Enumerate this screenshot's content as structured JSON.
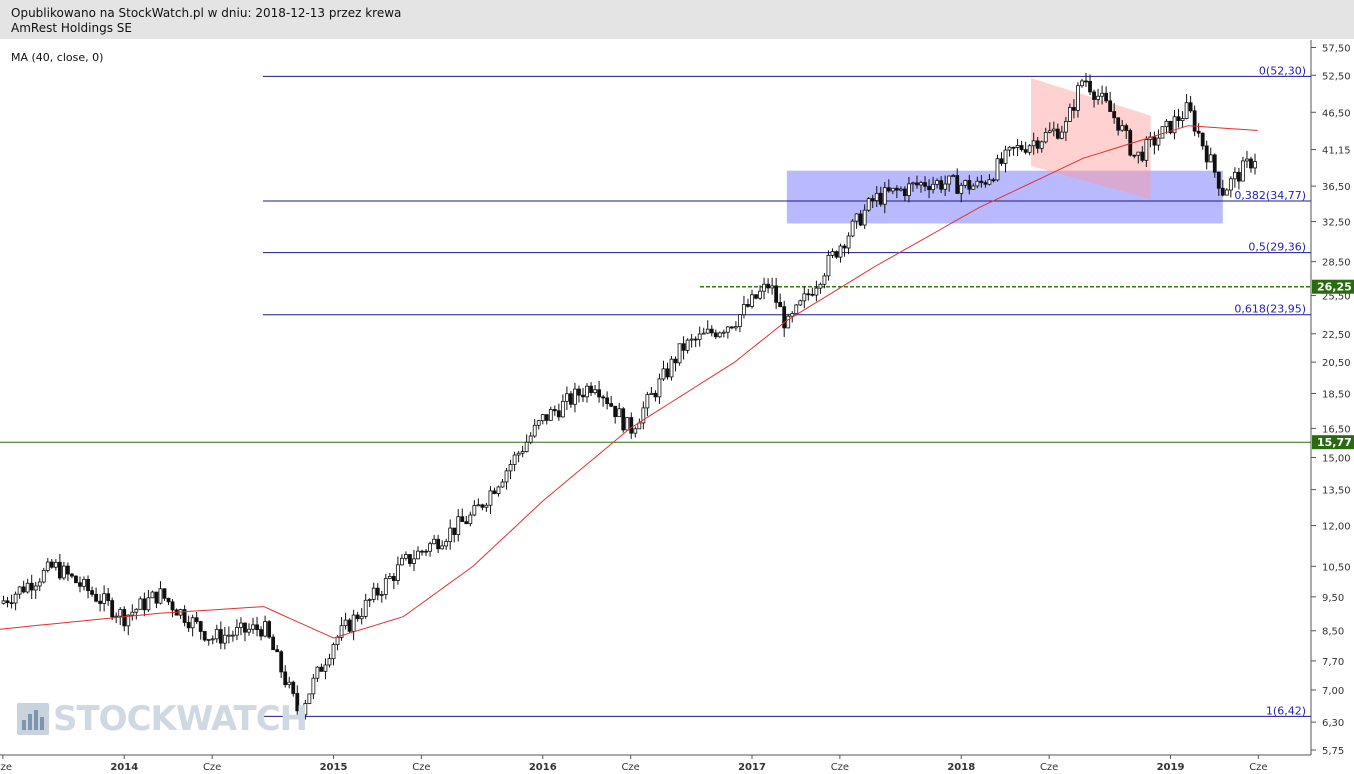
{
  "header": {
    "line1": "Opublikowano na StockWatch.pl w dniu: 2018-12-13 przez krewa",
    "line2": "AmRest Holdings SE"
  },
  "indicator_label": "MA (40, close, 0)",
  "watermark": "STOCKWATCH",
  "colors": {
    "candle": "#111111",
    "ma_line": "#e23030",
    "fib_lines": "#1a1a8c",
    "fib_labels": "#2222bb",
    "support_zone": "#8080ff",
    "channel": "#ff9a9a",
    "marker_green": "#2a6b12",
    "dashed_level": "#2e7d16"
  },
  "chart_data": {
    "type": "candlestick",
    "y_scale": "log",
    "ylim": [
      5.75,
      57.5
    ],
    "y_ticks": [
      "57,50",
      "52,50",
      "46,50",
      "41,15",
      "36,50",
      "32,50",
      "28,50",
      "25,50",
      "22,50",
      "20,50",
      "18,50",
      "16,50",
      "15,00",
      "13,50",
      "12,00",
      "10,50",
      "9,50",
      "8,50",
      "7,70",
      "7,00",
      "6,30",
      "5,75"
    ],
    "x_ticks": [
      "Cze",
      "2014",
      "Cze",
      "2015",
      "Cze",
      "2016",
      "Cze",
      "2017",
      "Cze",
      "2018",
      "Cze",
      "2019",
      "Cze"
    ],
    "xlim": [
      "2013-01",
      "2019-09"
    ],
    "fibonacci_levels": [
      {
        "label": "0(52,30)",
        "value": 52.3
      },
      {
        "label": "0,382(34,77)",
        "value": 34.77
      },
      {
        "label": "0,5(29,36)",
        "value": 29.36
      },
      {
        "label": "0,618(23,95)",
        "value": 23.95
      },
      {
        "label": "1(6,42)",
        "value": 6.42
      }
    ],
    "price_markers": [
      {
        "label": "26,25",
        "value": 26.25,
        "style": "dashed"
      },
      {
        "label": "15,77",
        "value": 15.77,
        "style": "solid"
      }
    ],
    "support_zone": {
      "low": 32.3,
      "high": 38.4,
      "from": "2017-03",
      "to": "2019-04"
    },
    "channel": {
      "from": "2018-05",
      "to": "2018-11",
      "top_start": 52.0,
      "top_end": 46.0,
      "bottom_start": 39.0,
      "bottom_end": 35.0
    },
    "price_path": [
      {
        "t": "2013-01",
        "close": 8.3
      },
      {
        "t": "2013-05",
        "close": 9.0
      },
      {
        "t": "2013-09",
        "close": 10.5
      },
      {
        "t": "2014-01",
        "close": 8.9
      },
      {
        "t": "2014-03",
        "close": 9.6
      },
      {
        "t": "2014-06",
        "close": 8.3
      },
      {
        "t": "2014-09",
        "close": 8.6
      },
      {
        "t": "2014-11",
        "close": 6.5
      },
      {
        "t": "2015-01",
        "close": 8.2
      },
      {
        "t": "2015-05",
        "close": 10.6
      },
      {
        "t": "2015-09",
        "close": 12.4
      },
      {
        "t": "2016-01",
        "close": 17.0
      },
      {
        "t": "2016-04",
        "close": 19.2
      },
      {
        "t": "2016-06",
        "close": 16.4
      },
      {
        "t": "2016-09",
        "close": 21.5
      },
      {
        "t": "2016-12",
        "close": 23.5
      },
      {
        "t": "2017-02",
        "close": 26.5
      },
      {
        "t": "2017-03",
        "close": 23.0
      },
      {
        "t": "2017-06",
        "close": 30.0
      },
      {
        "t": "2017-08",
        "close": 35.0
      },
      {
        "t": "2017-11",
        "close": 37.0
      },
      {
        "t": "2018-02",
        "close": 36.5
      },
      {
        "t": "2018-04",
        "close": 41.0
      },
      {
        "t": "2018-07",
        "close": 44.5
      },
      {
        "t": "2018-08",
        "close": 52.3
      },
      {
        "t": "2018-10",
        "close": 45.0
      },
      {
        "t": "2018-11",
        "close": 40.0
      },
      {
        "t": "2019-02",
        "close": 47.0
      },
      {
        "t": "2019-04",
        "close": 36.0
      },
      {
        "t": "2019-06",
        "close": 40.5
      }
    ],
    "ma_path": [
      {
        "t": "2013-01",
        "value": 8.3
      },
      {
        "t": "2013-09",
        "value": 8.7
      },
      {
        "t": "2014-03",
        "value": 9.0
      },
      {
        "t": "2014-09",
        "value": 9.2
      },
      {
        "t": "2015-01",
        "value": 8.3
      },
      {
        "t": "2015-05",
        "value": 8.9
      },
      {
        "t": "2015-09",
        "value": 10.5
      },
      {
        "t": "2016-01",
        "value": 13.0
      },
      {
        "t": "2016-06",
        "value": 16.5
      },
      {
        "t": "2016-12",
        "value": 20.5
      },
      {
        "t": "2017-03",
        "value": 23.5
      },
      {
        "t": "2017-08",
        "value": 28.0
      },
      {
        "t": "2018-02",
        "value": 34.0
      },
      {
        "t": "2018-08",
        "value": 40.0
      },
      {
        "t": "2019-02",
        "value": 44.5
      },
      {
        "t": "2019-06",
        "value": 43.8
      }
    ]
  }
}
